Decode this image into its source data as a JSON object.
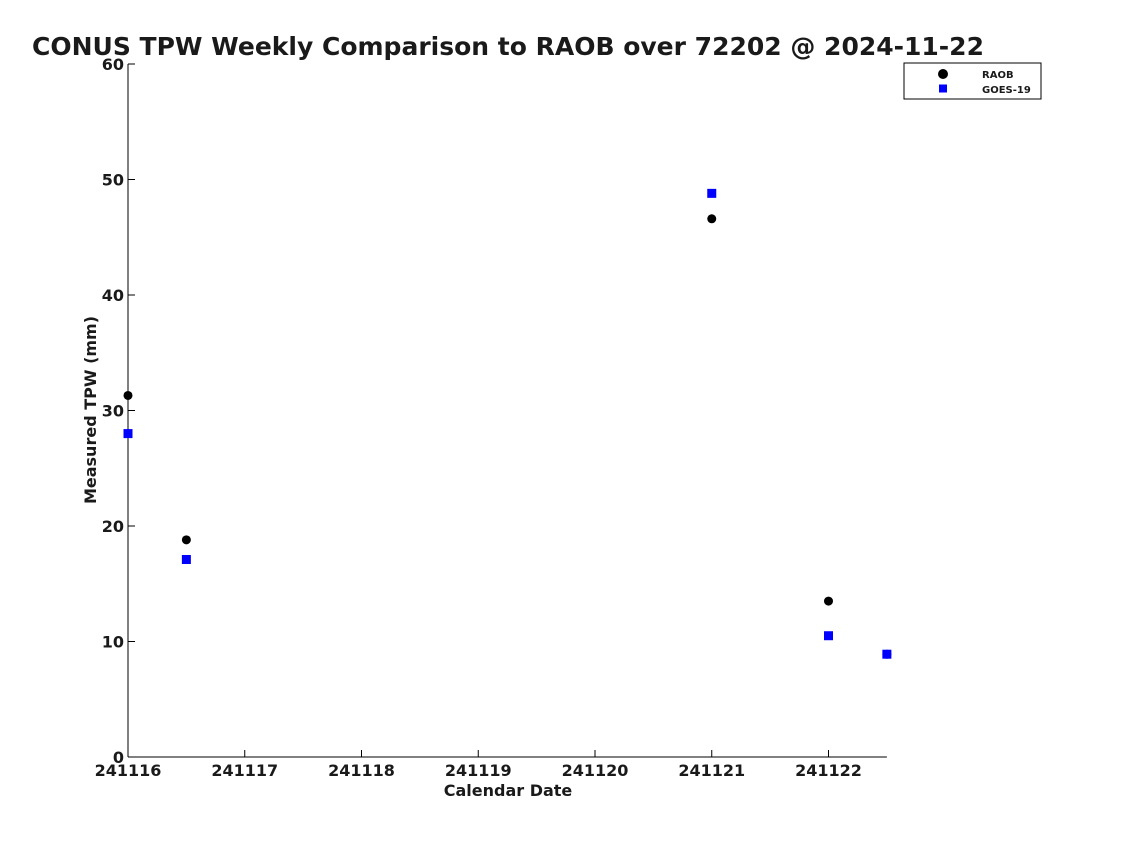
{
  "chart_data": {
    "type": "scatter",
    "title": "CONUS TPW Weekly Comparison to RAOB over 72202 @ 2024-11-22",
    "xlabel": "Calendar Date",
    "ylabel": "Measured TPW (mm)",
    "xlim": [
      0,
      6.5
    ],
    "ylim": [
      0,
      60
    ],
    "x_ticks": [
      {
        "value": 0,
        "label": "241116"
      },
      {
        "value": 1,
        "label": "241117"
      },
      {
        "value": 2,
        "label": "241118"
      },
      {
        "value": 3,
        "label": "241119"
      },
      {
        "value": 4,
        "label": "241120"
      },
      {
        "value": 5,
        "label": "241121"
      },
      {
        "value": 6,
        "label": "241122"
      }
    ],
    "y_ticks": [
      0,
      10,
      20,
      30,
      40,
      50,
      60
    ],
    "grid": false,
    "legend_position": "top-right",
    "series": [
      {
        "name": "RAOB",
        "marker": "circle",
        "color": "#000000",
        "points": [
          {
            "x": 0.0,
            "y": 31.3
          },
          {
            "x": 0.5,
            "y": 18.8
          },
          {
            "x": 5.0,
            "y": 46.6
          },
          {
            "x": 6.0,
            "y": 13.5
          },
          {
            "x": 6.5,
            "y": 8.9
          }
        ]
      },
      {
        "name": "GOES-19",
        "marker": "square",
        "color": "#0000ff",
        "points": [
          {
            "x": 0.0,
            "y": 28.0
          },
          {
            "x": 0.5,
            "y": 17.1
          },
          {
            "x": 5.0,
            "y": 48.8
          },
          {
            "x": 6.0,
            "y": 10.5
          },
          {
            "x": 6.5,
            "y": 8.9
          }
        ]
      }
    ]
  }
}
